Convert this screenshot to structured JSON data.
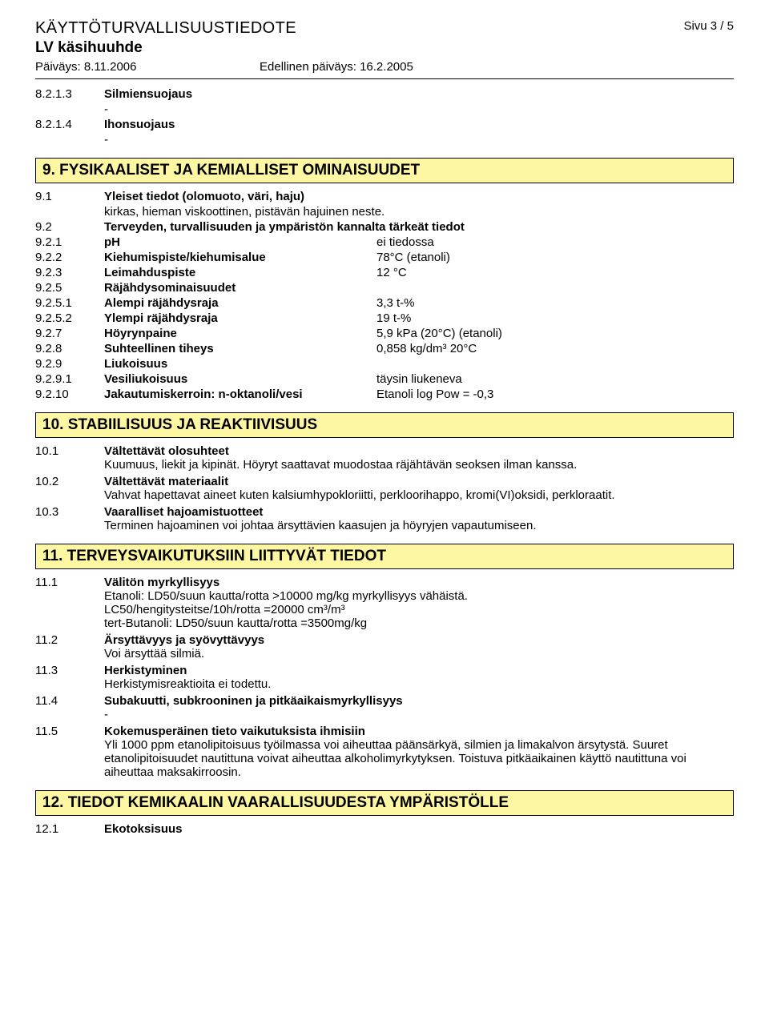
{
  "colors": {
    "section_bg": "#fdf7a4",
    "border": "#000000",
    "background": "#ffffff",
    "text": "#000000"
  },
  "fonts": {
    "doc_title_size": 20,
    "product_size": 19,
    "section_size": 19,
    "body_size": 15
  },
  "header": {
    "doc_title": "KÄYTTÖTURVALLISUUSTIEDOTE",
    "page": "Sivu  3 / 5",
    "product": "LV käsihuuhde",
    "date_label": "Päiväys: 8.11.2006",
    "prev_date_label": "Edellinen päiväys: 16.2.2005"
  },
  "pre_rows": [
    {
      "code": "8.2.1.3",
      "label": "Silmiensuojaus",
      "dash": "-"
    },
    {
      "code": "8.2.1.4",
      "label": "Ihonsuojaus",
      "dash": "-"
    }
  ],
  "section9": {
    "title": "9. FYSIKAALISET JA KEMIALLISET OMINAISUUDET",
    "rows": [
      {
        "code": "9.1",
        "label_bold": true,
        "label": "Yleiset tiedot (olomuoto, väri, haju)",
        "text": "kirkas, hieman viskoottinen, pistävän hajuinen neste."
      },
      {
        "code": "9.2",
        "label_bold": true,
        "label": "Terveyden, turvallisuuden ja ympäristön kannalta tärkeät tiedot"
      },
      {
        "code": "9.2.1",
        "label_bold": true,
        "label": "pH",
        "value": "ei tiedossa"
      },
      {
        "code": "9.2.2",
        "label_bold": true,
        "label": "Kiehumispiste/kiehumisalue",
        "value": "78°C (etanoli)"
      },
      {
        "code": "9.2.3",
        "label_bold": true,
        "label": "Leimahduspiste",
        "value": "12 °C"
      },
      {
        "code": "9.2.5",
        "label_bold": true,
        "label": "Räjähdysominaisuudet"
      },
      {
        "code": "9.2.5.1",
        "label_bold": true,
        "label": "Alempi räjähdysraja",
        "value": "3,3 t-%"
      },
      {
        "code": "9.2.5.2",
        "label_bold": true,
        "label": "Ylempi räjähdysraja",
        "value": "19 t-%"
      },
      {
        "code": "9.2.7",
        "label_bold": true,
        "label": "Höyrynpaine",
        "value": "5,9 kPa (20°C) (etanoli)"
      },
      {
        "code": "9.2.8",
        "label_bold": true,
        "label": "Suhteellinen tiheys",
        "value": "0,858 kg/dm³ 20°C"
      },
      {
        "code": "9.2.9",
        "label_bold": true,
        "label": "Liukoisuus"
      },
      {
        "code": "9.2.9.1",
        "label_bold": true,
        "label": "Vesiliukoisuus",
        "value": "täysin liukeneva"
      },
      {
        "code": "9.2.10",
        "label_bold": true,
        "label": "Jakautumiskerroin: n-oktanoli/vesi",
        "value": "Etanoli log Pow = -0,3"
      }
    ]
  },
  "section10": {
    "title": "10. STABIILISUUS JA REAKTIIVISUUS",
    "rows": [
      {
        "code": "10.1",
        "heading": "Vältettävät olosuhteet",
        "text": "Kuumuus, liekit ja kipinät. Höyryt saattavat muodostaa räjähtävän seoksen ilman kanssa."
      },
      {
        "code": "10.2",
        "heading": "Vältettävät materiaalit",
        "text": "Vahvat hapettavat aineet kuten kalsiumhypokloriitti, perkloorihappo, kromi(VI)oksidi, perkloraatit."
      },
      {
        "code": "10.3",
        "heading": "Vaaralliset hajoamistuotteet",
        "text": "Terminen hajoaminen voi johtaa ärsyttävien kaasujen ja höyryjen vapautumiseen."
      }
    ]
  },
  "section11": {
    "title": "11. TERVEYSVAIKUTUKSIIN LIITTYVÄT TIEDOT",
    "rows": [
      {
        "code": "11.1",
        "heading": "Välitön myrkyllisyys",
        "lines": [
          "Etanoli: LD50/suun kautta/rotta >10000 mg/kg myrkyllisyys vähäistä.",
          "LC50/hengitysteitse/10h/rotta =20000 cm³/m³",
          "tert-Butanoli: LD50/suun kautta/rotta =3500mg/kg"
        ]
      },
      {
        "code": "11.2",
        "heading": "Ärsyttävyys ja syövyttävyys",
        "lines": [
          "Voi ärsyttää silmiä."
        ]
      },
      {
        "code": "11.3",
        "heading": "Herkistyminen",
        "lines": [
          "Herkistymisreaktioita ei todettu."
        ]
      },
      {
        "code": "11.4",
        "heading": "Subakuutti, subkrooninen ja pitkäaikaismyrkyllisyys",
        "lines": [
          "-"
        ]
      },
      {
        "code": "11.5",
        "heading": "Kokemusperäinen tieto vaikutuksista ihmisiin",
        "lines": [
          "Yli 1000 ppm etanolipitoisuus työilmassa voi aiheuttaa päänsärkyä, silmien ja limakalvon ärsytystä. Suuret etanolipitoisuudet nautittuna voivat aiheuttaa alkoholimyrkytyksen. Toistuva pitkäaikainen käyttö nautittuna voi aiheuttaa maksakirroosin."
        ]
      }
    ]
  },
  "section12": {
    "title": "12. TIEDOT KEMIKAALIN VAARALLISUUDESTA YMPÄRISTÖLLE",
    "rows": [
      {
        "code": "12.1",
        "heading": "Ekotoksisuus"
      }
    ]
  }
}
